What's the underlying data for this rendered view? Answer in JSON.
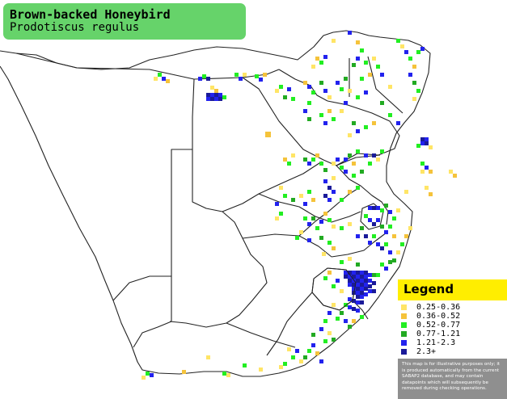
{
  "title": {
    "common_name": "Brown-backed Honeybird",
    "scientific_name": "Prodotiscus regulus"
  },
  "colors": {
    "title_bg": "#66d36a",
    "legend_header_bg": "#ffee00",
    "disclaimer_bg": "#8f8f8f",
    "map_outline": "#222222"
  },
  "legend": {
    "title": "Legend",
    "items": [
      {
        "label": "0.25-0.36",
        "color": "#ffe566"
      },
      {
        "label": "0.36-0.52",
        "color": "#f5c33b"
      },
      {
        "label": "0.52-0.77",
        "color": "#22ee22"
      },
      {
        "label": "0.77-1.21",
        "color": "#22aa22"
      },
      {
        "label": "1.21-2.3",
        "color": "#2222ee"
      },
      {
        "label": "2.3+",
        "color": "#1a1a99"
      }
    ],
    "disclaimer": "This map is for illustrative purposes only; it is produced automatically from the current SABAP2 database, and may contain datapoints which will subsequently be removed during checking operations."
  }
}
